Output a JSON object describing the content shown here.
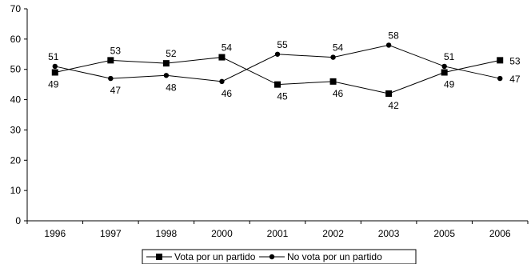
{
  "chart_data": {
    "type": "line",
    "categories": [
      "1996",
      "1997",
      "1998",
      "2000",
      "2001",
      "2002",
      "2003",
      "2005",
      "2006"
    ],
    "series": [
      {
        "name": "Vota por un partido",
        "marker": "square",
        "values": [
          49,
          53,
          52,
          54,
          45,
          46,
          42,
          49,
          53
        ]
      },
      {
        "name": "No vota por un partido",
        "marker": "circle",
        "values": [
          51,
          47,
          48,
          46,
          55,
          54,
          58,
          51,
          47
        ]
      }
    ],
    "ylim": [
      0,
      70
    ],
    "yticks": [
      0,
      10,
      20,
      30,
      40,
      50,
      60,
      70
    ],
    "grid": false,
    "legend_position": "bottom",
    "colors": {
      "line": "#000000",
      "background": "#ffffff"
    }
  }
}
